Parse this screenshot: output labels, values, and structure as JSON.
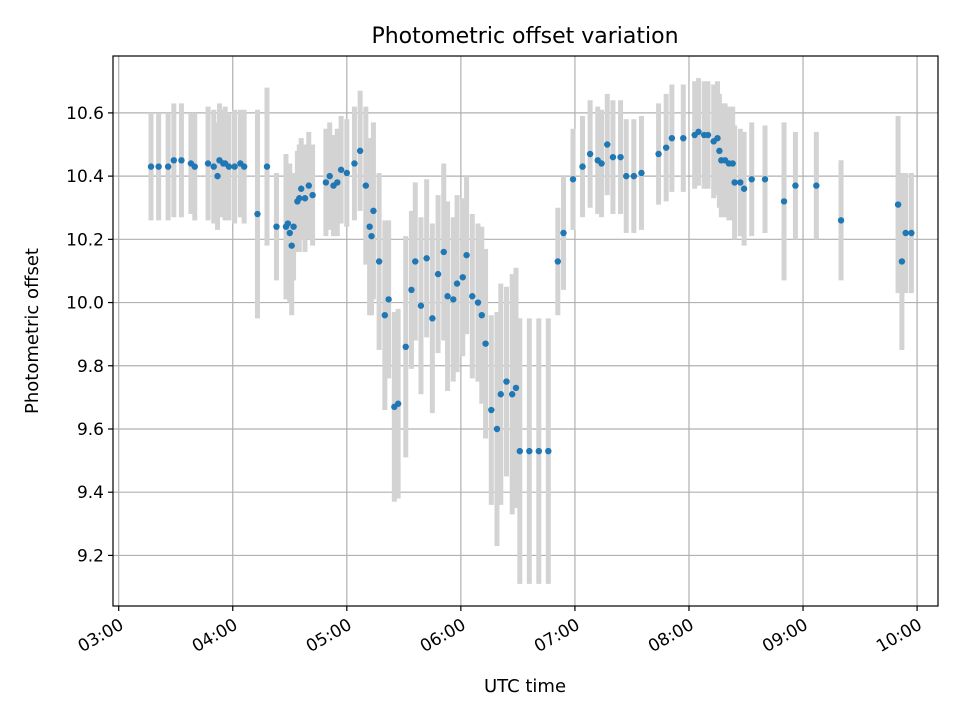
{
  "chart_data": {
    "type": "scatter",
    "title": "Photometric offset variation",
    "xlabel": "UTC time",
    "ylabel": "Photometric offset",
    "x_unit": "hours UTC",
    "xlim": [
      "02:57",
      "10:11"
    ],
    "ylim": [
      9.04,
      10.78
    ],
    "x_ticks": [
      "03:00",
      "04:00",
      "05:00",
      "06:00",
      "07:00",
      "08:00",
      "09:00",
      "10:00"
    ],
    "y_ticks": [
      "9.2",
      "9.4",
      "9.6",
      "9.8",
      "10.0",
      "10.2",
      "10.4",
      "10.6"
    ],
    "grid": true,
    "legend": "none",
    "colors": {
      "points": "#1f77b4",
      "error_bars": "#d3d3d3",
      "grid": "#b0b0b0"
    },
    "series": [
      {
        "x": [
          "03:17",
          "03:21",
          "03:26",
          "03:29",
          "03:33",
          "03:38",
          "03:40",
          "03:47",
          "03:50",
          "03:52",
          "03:53",
          "03:55",
          "03:56",
          "03:58",
          "04:01",
          "04:04",
          "04:06",
          "04:13",
          "04:18",
          "04:23",
          "04:28",
          "04:29",
          "04:30",
          "04:31",
          "04:32",
          "04:34",
          "04:35",
          "04:36",
          "04:38",
          "04:40",
          "04:42",
          "04:49",
          "04:51",
          "04:53",
          "04:55",
          "04:57",
          "05:00",
          "05:04",
          "05:07",
          "05:10",
          "05:12",
          "05:13",
          "05:14",
          "05:17",
          "05:20",
          "05:22",
          "05:25",
          "05:27",
          "05:31",
          "05:34",
          "05:36",
          "05:39",
          "05:42",
          "05:45",
          "05:48",
          "05:51",
          "05:53",
          "05:56",
          "05:58",
          "06:01",
          "06:03",
          "06:06",
          "06:09",
          "06:11",
          "06:13",
          "06:16",
          "06:19",
          "06:21",
          "06:24",
          "06:27",
          "06:29",
          "06:31",
          "06:36",
          "06:41",
          "06:46",
          "06:51",
          "06:54",
          "06:59",
          "07:04",
          "07:08",
          "07:12",
          "07:14",
          "07:17",
          "07:20",
          "07:24",
          "07:27",
          "07:31",
          "07:35",
          "07:44",
          "07:48",
          "07:51",
          "07:57",
          "08:03",
          "08:05",
          "08:08",
          "08:10",
          "08:13",
          "08:15",
          "08:16",
          "08:17",
          "08:19",
          "08:21",
          "08:23",
          "08:24",
          "08:27",
          "08:29",
          "08:33",
          "08:40",
          "08:50",
          "08:56",
          "09:07",
          "09:20",
          "09:50",
          "09:52",
          "09:54",
          "09:57"
        ],
        "y": [
          10.43,
          10.43,
          10.43,
          10.45,
          10.45,
          10.44,
          10.43,
          10.44,
          10.43,
          10.4,
          10.45,
          10.44,
          10.44,
          10.43,
          10.43,
          10.44,
          10.43,
          10.28,
          10.43,
          10.24,
          10.24,
          10.25,
          10.22,
          10.18,
          10.24,
          10.32,
          10.33,
          10.36,
          10.33,
          10.37,
          10.34,
          10.38,
          10.4,
          10.37,
          10.38,
          10.42,
          10.41,
          10.44,
          10.48,
          10.37,
          10.24,
          10.21,
          10.29,
          10.13,
          9.96,
          10.01,
          9.67,
          9.68,
          9.86,
          10.04,
          10.13,
          9.99,
          10.14,
          9.95,
          10.09,
          10.16,
          10.02,
          10.01,
          10.06,
          10.08,
          10.15,
          10.02,
          10.0,
          9.96,
          9.87,
          9.66,
          9.6,
          9.71,
          9.75,
          9.71,
          9.73,
          9.53,
          9.53,
          9.53,
          9.53,
          10.13,
          10.22,
          10.39,
          10.43,
          10.47,
          10.45,
          10.44,
          10.5,
          10.46,
          10.46,
          10.4,
          10.4,
          10.41,
          10.47,
          10.49,
          10.52,
          10.52,
          10.53,
          10.54,
          10.53,
          10.53,
          10.51,
          10.52,
          10.48,
          10.45,
          10.45,
          10.44,
          10.44,
          10.38,
          10.38,
          10.36,
          10.39,
          10.39,
          10.32,
          10.37,
          10.37,
          10.26,
          10.31,
          10.13,
          10.22,
          10.22
        ],
        "y_error": [
          0.17,
          0.17,
          0.17,
          0.18,
          0.18,
          0.16,
          0.17,
          0.18,
          0.18,
          0.17,
          0.18,
          0.17,
          0.18,
          0.17,
          0.18,
          0.17,
          0.18,
          0.33,
          0.25,
          0.17,
          0.23,
          0.18,
          0.22,
          0.22,
          0.17,
          0.16,
          0.17,
          0.16,
          0.17,
          0.17,
          0.16,
          0.17,
          0.17,
          0.16,
          0.17,
          0.17,
          0.17,
          0.18,
          0.19,
          0.25,
          0.28,
          0.25,
          0.28,
          0.28,
          0.3,
          0.25,
          0.3,
          0.3,
          0.35,
          0.25,
          0.25,
          0.28,
          0.25,
          0.3,
          0.25,
          0.28,
          0.3,
          0.26,
          0.28,
          0.25,
          0.25,
          0.26,
          0.25,
          0.28,
          0.3,
          0.3,
          0.37,
          0.35,
          0.3,
          0.38,
          0.38,
          0.42,
          0.42,
          0.42,
          0.42,
          0.17,
          0.18,
          0.16,
          0.16,
          0.17,
          0.17,
          0.17,
          0.16,
          0.18,
          0.18,
          0.18,
          0.18,
          0.18,
          0.16,
          0.17,
          0.17,
          0.17,
          0.17,
          0.17,
          0.17,
          0.17,
          0.18,
          0.18,
          0.18,
          0.18,
          0.18,
          0.18,
          0.18,
          0.18,
          0.17,
          0.18,
          0.18,
          0.17,
          0.25,
          0.17,
          0.17,
          0.19,
          0.28,
          0.28,
          0.19,
          0.19
        ]
      }
    ]
  }
}
